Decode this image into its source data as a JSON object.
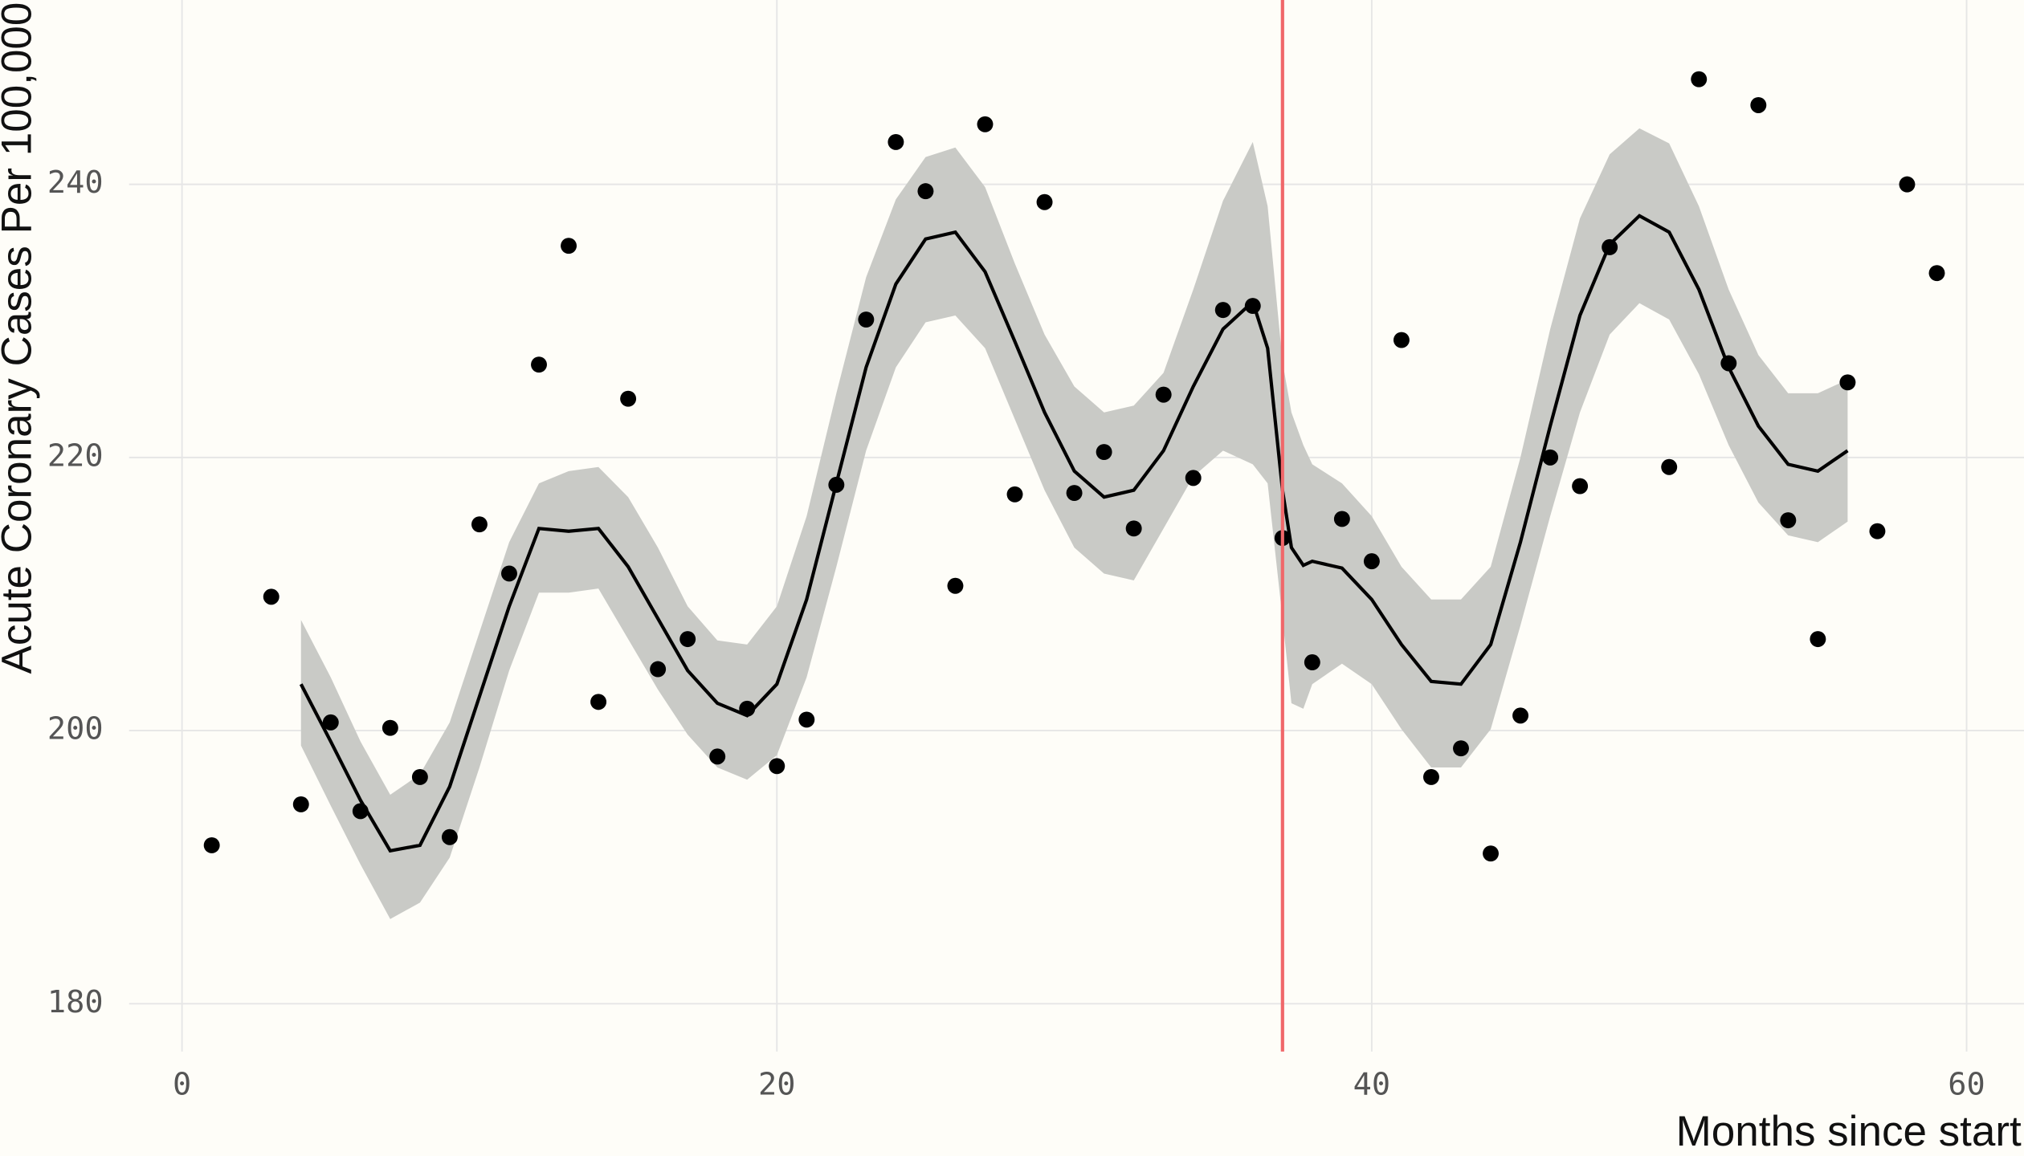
{
  "chart_data": {
    "type": "scatter",
    "x_label": "Months since start",
    "y_label": "Acute Coronary Cases Per 100,000",
    "xlim": [
      -1.78,
      61.93
    ],
    "ylim": [
      176.5,
      253.5
    ],
    "xticks": [
      0,
      20,
      40,
      60
    ],
    "yticks": [
      180,
      200,
      220,
      240
    ],
    "grid": true,
    "background": "#fefdf8",
    "series": [
      {
        "type": "scatter",
        "color": "#000000",
        "x": [
          1,
          3,
          4,
          5,
          6,
          7,
          8,
          9,
          10,
          11,
          12,
          13,
          14,
          15,
          16,
          17,
          18,
          19,
          20,
          21,
          22,
          23,
          24,
          25,
          26,
          27,
          28,
          29,
          30,
          31,
          32,
          33,
          34,
          35,
          36,
          37,
          38,
          39,
          40,
          41,
          42,
          43,
          44,
          45,
          46,
          47,
          48,
          50,
          51,
          52,
          53,
          54,
          55,
          56,
          57,
          58,
          59
        ],
        "values": [
          191.6,
          209.8,
          194.6,
          200.6,
          194.1,
          200.2,
          196.6,
          192.2,
          215.1,
          211.5,
          226.8,
          235.5,
          202.1,
          224.3,
          204.5,
          206.7,
          198.1,
          201.6,
          197.4,
          200.8,
          218.0,
          230.1,
          243.1,
          239.5,
          210.6,
          244.4,
          217.3,
          238.7,
          217.4,
          220.4,
          214.8,
          224.6,
          218.5,
          230.8,
          231.1,
          214.1,
          205.0,
          215.5,
          212.4,
          228.6,
          196.6,
          198.7,
          191.0,
          201.1,
          220.0,
          217.9,
          235.4,
          219.3,
          247.7,
          226.9,
          245.8,
          215.4,
          206.7,
          225.5,
          214.6,
          240.0,
          233.5
        ]
      },
      {
        "type": "line",
        "color": "#000000",
        "band_color": "#c9cac6",
        "x": [
          4,
          5,
          6,
          7,
          8,
          9,
          10,
          11,
          12,
          13,
          14,
          15,
          16,
          17,
          18,
          19,
          20,
          21,
          22,
          23,
          24,
          25,
          26,
          27,
          28,
          29,
          30,
          31,
          32,
          33,
          34,
          35,
          36,
          36.5,
          37,
          37.3,
          37.7,
          38,
          39,
          40,
          41,
          42,
          43,
          44,
          45,
          46,
          47,
          48,
          49,
          50,
          51,
          52,
          53,
          54,
          55,
          56
        ],
        "values": [
          203.4,
          199.2,
          194.9,
          191.2,
          191.6,
          195.9,
          202.5,
          209.1,
          214.8,
          214.6,
          214.8,
          212.0,
          208.2,
          204.4,
          202.0,
          201.1,
          203.4,
          209.6,
          218.1,
          226.6,
          232.7,
          236.0,
          236.5,
          233.6,
          228.5,
          223.3,
          219.0,
          217.1,
          217.6,
          220.5,
          225.2,
          229.4,
          231.4,
          228.0,
          217.6,
          213.4,
          212.1,
          212.4,
          211.9,
          209.6,
          206.3,
          203.6,
          203.4,
          206.3,
          213.8,
          222.3,
          230.4,
          235.6,
          237.7,
          236.5,
          232.3,
          226.6,
          222.3,
          219.5,
          219.0,
          220.5
        ],
        "lower": [
          198.9,
          194.5,
          190.2,
          186.2,
          187.4,
          190.7,
          197.3,
          204.4,
          210.1,
          210.1,
          210.4,
          206.7,
          203.0,
          199.7,
          197.3,
          196.4,
          198.2,
          203.9,
          212.0,
          220.5,
          226.6,
          229.9,
          230.4,
          228.0,
          222.8,
          217.6,
          213.4,
          211.5,
          211.0,
          214.8,
          218.6,
          220.5,
          219.5,
          218.1,
          208.2,
          202.0,
          201.6,
          203.4,
          204.9,
          203.4,
          200.1,
          197.3,
          197.3,
          200.1,
          207.7,
          215.7,
          223.3,
          229.0,
          231.3,
          230.1,
          226.1,
          220.9,
          216.7,
          214.3,
          213.8,
          215.3
        ],
        "upper": [
          208.1,
          203.9,
          199.2,
          195.3,
          196.8,
          200.6,
          207.2,
          213.8,
          218.1,
          219.0,
          219.3,
          217.1,
          213.4,
          209.1,
          206.6,
          206.3,
          209.1,
          215.7,
          224.7,
          233.2,
          238.9,
          242.0,
          242.7,
          239.8,
          234.2,
          229.0,
          225.2,
          223.3,
          223.8,
          226.2,
          232.3,
          238.8,
          243.1,
          238.4,
          227.0,
          223.3,
          220.9,
          219.5,
          218.1,
          215.7,
          212.0,
          209.6,
          209.6,
          212.0,
          220.0,
          229.4,
          237.5,
          242.2,
          244.1,
          243.0,
          238.4,
          232.3,
          227.5,
          224.7,
          224.7,
          225.7
        ]
      }
    ],
    "vline": {
      "x": 37,
      "color": "#f0676a"
    }
  }
}
